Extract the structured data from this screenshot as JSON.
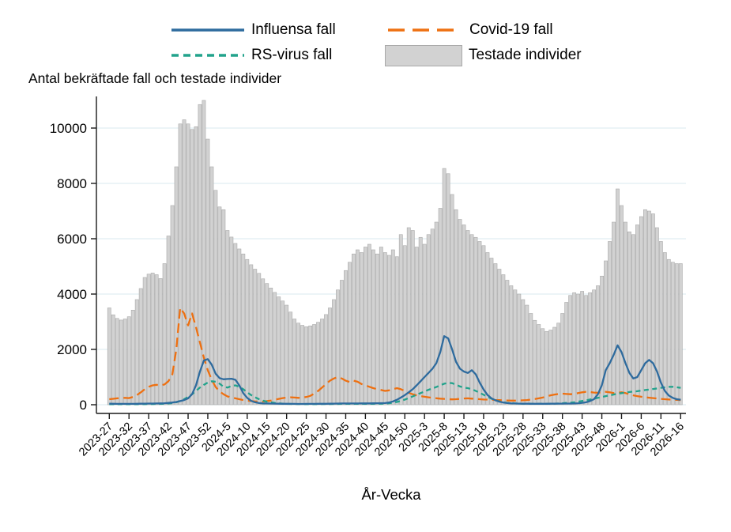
{
  "chart_data": {
    "type": "bar+line",
    "title": "Antal bekräftade fall och testade individer",
    "xlabel": "År-Vecka",
    "grid_color": "#e1eef2",
    "axis_color": "#1a1a1a",
    "ylim": [
      0,
      11200
    ],
    "yticks": [
      0,
      2000,
      4000,
      6000,
      8000,
      10000
    ],
    "x_tick_step": 5,
    "n_weeks": 146,
    "x_tick_labels": [
      "2023-27",
      "2023-32",
      "2023-37",
      "2023-42",
      "2023-47",
      "2023-52",
      "2024-5",
      "2024-10",
      "2024-15",
      "2024-20",
      "2024-25",
      "2024-30",
      "2024-35",
      "2024-40",
      "2024-45",
      "2024-50",
      "2025-3",
      "2025-8",
      "2025-13",
      "2025-18",
      "2025-23",
      "2025-28",
      "2025-33",
      "2025-38",
      "2025-43",
      "2025-48",
      "2026-1",
      "2026-6",
      "2026-11",
      "2026-16"
    ],
    "bars": {
      "name": "Testade individer",
      "color": "#d2d2d2",
      "border": "#a9a9a9",
      "values": [
        3500,
        3250,
        3120,
        3060,
        3100,
        3180,
        3420,
        3800,
        4200,
        4600,
        4720,
        4760,
        4700,
        4560,
        5100,
        6100,
        7200,
        8600,
        10150,
        10300,
        10150,
        9950,
        10050,
        10850,
        11000,
        9600,
        8600,
        7750,
        7150,
        7050,
        6300,
        6060,
        5830,
        5630,
        5450,
        5250,
        5060,
        4900,
        4750,
        4550,
        4380,
        4220,
        4060,
        3900,
        3750,
        3600,
        3350,
        3100,
        2950,
        2870,
        2820,
        2850,
        2900,
        2980,
        3100,
        3260,
        3500,
        3800,
        4150,
        4500,
        4850,
        5150,
        5450,
        5600,
        5500,
        5700,
        5800,
        5600,
        5450,
        5700,
        5500,
        5400,
        5600,
        5350,
        6150,
        5750,
        6400,
        6300,
        5700,
        6050,
        5800,
        6150,
        6350,
        6600,
        7100,
        8540,
        8350,
        7600,
        7050,
        6700,
        6500,
        6300,
        6150,
        6050,
        5900,
        5750,
        5500,
        5300,
        5100,
        4900,
        4700,
        4500,
        4300,
        4150,
        4000,
        3800,
        3600,
        3300,
        3050,
        2900,
        2750,
        2650,
        2700,
        2800,
        2950,
        3300,
        3700,
        3950,
        4050,
        4000,
        4100,
        3950,
        4050,
        4150,
        4300,
        4650,
        5200,
        5900,
        6600,
        7800,
        7200,
        6600,
        6250,
        6150,
        6500,
        6800,
        7050,
        7000,
        6900,
        6400,
        5900,
        5500,
        5250,
        5150,
        5100,
        5100
      ]
    },
    "series": [
      {
        "name": "Influensa fall",
        "color": "#2e6b9e",
        "dash": "solid",
        "values": [
          40,
          35,
          32,
          30,
          30,
          30,
          32,
          34,
          36,
          40,
          42,
          44,
          46,
          48,
          55,
          65,
          80,
          100,
          130,
          170,
          230,
          380,
          700,
          1200,
          1600,
          1650,
          1450,
          1120,
          960,
          920,
          930,
          940,
          900,
          700,
          420,
          250,
          140,
          90,
          60,
          50,
          45,
          42,
          40,
          38,
          35,
          33,
          30,
          30,
          28,
          28,
          30,
          30,
          32,
          33,
          35,
          35,
          38,
          40,
          42,
          45,
          45,
          45,
          45,
          45,
          48,
          50,
          50,
          52,
          55,
          58,
          60,
          80,
          120,
          180,
          260,
          350,
          450,
          560,
          700,
          850,
          1000,
          1150,
          1300,
          1500,
          1900,
          2480,
          2400,
          2000,
          1550,
          1300,
          1200,
          1150,
          1250,
          1100,
          800,
          550,
          350,
          230,
          160,
          110,
          80,
          60,
          50,
          45,
          40,
          38,
          36,
          35,
          35,
          35,
          35,
          35,
          36,
          38,
          40,
          40,
          42,
          42,
          45,
          55,
          70,
          90,
          130,
          200,
          380,
          700,
          1250,
          1500,
          1800,
          2150,
          1900,
          1500,
          1150,
          950,
          1000,
          1250,
          1500,
          1620,
          1500,
          1200,
          800,
          500,
          330,
          250,
          200,
          180
        ]
      },
      {
        "name": "Covid-19 fall",
        "color": "#ee7011",
        "dash": "long",
        "values": [
          200,
          215,
          230,
          245,
          250,
          240,
          280,
          350,
          450,
          560,
          650,
          700,
          720,
          700,
          730,
          850,
          1100,
          2000,
          3500,
          3300,
          2870,
          3300,
          2800,
          2250,
          1700,
          1250,
          900,
          640,
          480,
          380,
          300,
          260,
          230,
          200,
          170,
          150,
          130,
          120,
          110,
          115,
          130,
          150,
          180,
          210,
          240,
          260,
          270,
          260,
          250,
          260,
          280,
          320,
          400,
          500,
          620,
          750,
          870,
          950,
          1000,
          950,
          870,
          820,
          870,
          830,
          750,
          700,
          650,
          600,
          560,
          530,
          500,
          520,
          560,
          600,
          560,
          500,
          430,
          380,
          340,
          310,
          290,
          270,
          250,
          235,
          220,
          210,
          200,
          195,
          200,
          210,
          225,
          230,
          220,
          210,
          200,
          190,
          185,
          180,
          170,
          165,
          160,
          155,
          150,
          150,
          155,
          160,
          170,
          185,
          205,
          230,
          260,
          300,
          340,
          370,
          390,
          400,
          390,
          380,
          390,
          420,
          450,
          470,
          460,
          440,
          430,
          450,
          470,
          450,
          420,
          430,
          450,
          420,
          380,
          340,
          310,
          290,
          270,
          255,
          240,
          225,
          210,
          200,
          190,
          180,
          175,
          170
        ]
      },
      {
        "name": "RS-virus fall",
        "color": "#22a38c",
        "dash": "short",
        "values": [
          20,
          20,
          20,
          20,
          20,
          20,
          20,
          20,
          22,
          22,
          25,
          25,
          28,
          30,
          35,
          45,
          60,
          90,
          140,
          200,
          280,
          380,
          500,
          620,
          720,
          800,
          850,
          830,
          760,
          650,
          620,
          680,
          700,
          650,
          560,
          450,
          350,
          270,
          200,
          150,
          110,
          85,
          65,
          50,
          40,
          32,
          28,
          25,
          25,
          22,
          22,
          22,
          22,
          22,
          25,
          25,
          25,
          28,
          28,
          30,
          30,
          30,
          30,
          32,
          32,
          35,
          35,
          35,
          38,
          38,
          40,
          55,
          75,
          100,
          140,
          185,
          240,
          300,
          360,
          420,
          480,
          540,
          590,
          640,
          700,
          760,
          790,
          780,
          720,
          660,
          620,
          600,
          560,
          500,
          430,
          360,
          290,
          220,
          160,
          120,
          90,
          70,
          55,
          45,
          40,
          38,
          35,
          35,
          35,
          35,
          35,
          35,
          35,
          40,
          45,
          55,
          65,
          75,
          90,
          110,
          135,
          160,
          190,
          220,
          250,
          280,
          310,
          340,
          370,
          400,
          420,
          440,
          460,
          475,
          490,
          510,
          530,
          550,
          570,
          590,
          610,
          630,
          645,
          650,
          630,
          610
        ]
      }
    ]
  }
}
